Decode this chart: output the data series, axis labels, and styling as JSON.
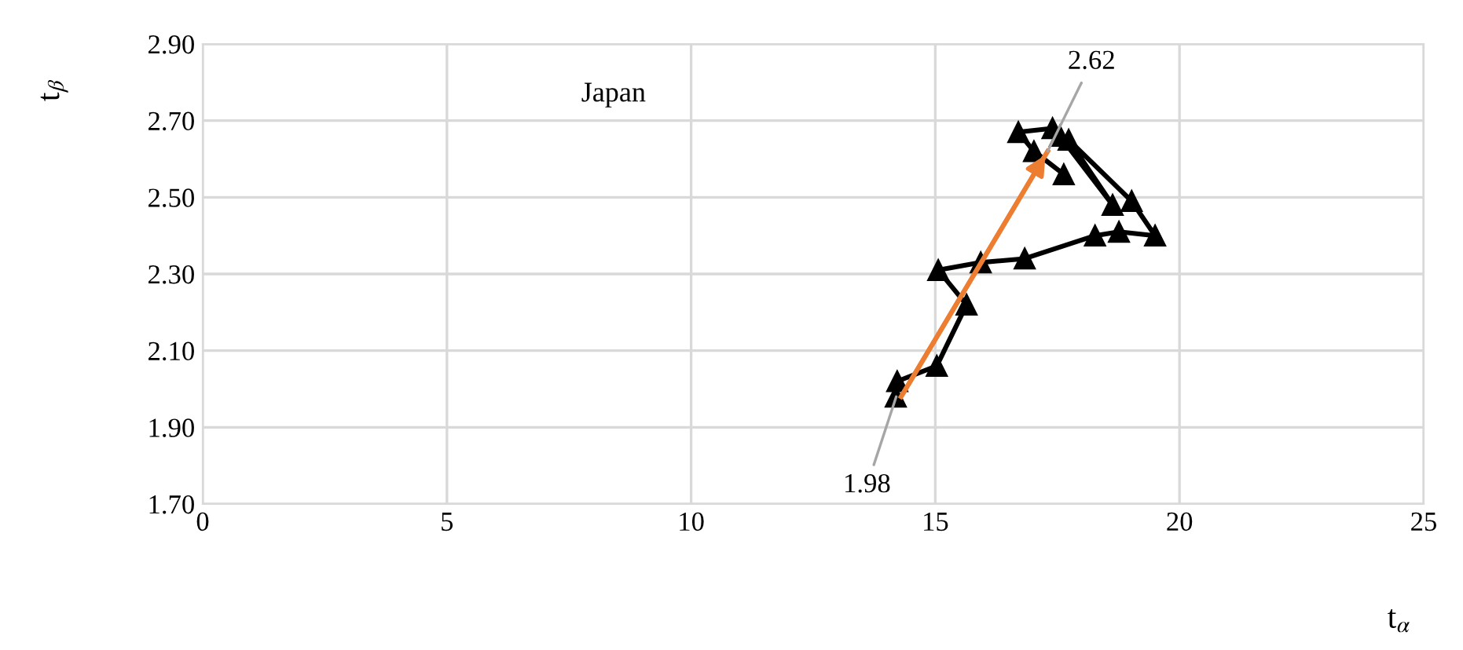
{
  "chart_data": {
    "type": "line",
    "xlabel": "t$_{α}$",
    "ylabel": "t$_{β}$",
    "annotations": [
      "Japan",
      {
        "text": "1.98",
        "x": 14.2,
        "y": 1.98
      },
      {
        "text": "2.62",
        "x": 17.3,
        "y": 2.62
      }
    ],
    "series": [
      {
        "color": "#000000",
        "marker": "triangle",
        "x": [
          14.19,
          14.22,
          15.03,
          15.64,
          15.06,
          15.93,
          16.83,
          18.27,
          18.76,
          19.5,
          19.02,
          17.73,
          18.63,
          17.55,
          17.4,
          16.7,
          17.02,
          17.63
        ],
        "values": [
          1.98,
          2.02,
          2.06,
          2.22,
          2.31,
          2.33,
          2.34,
          2.4,
          2.41,
          2.4,
          2.49,
          2.65,
          2.48,
          2.66,
          2.68,
          2.67,
          2.62,
          2.56
        ]
      },
      {
        "color": "#ed7d31",
        "marker": "none",
        "x": [
          14.3,
          17.3
        ],
        "values": [
          1.98,
          2.62
        ]
      }
    ],
    "xlim": [
      0,
      25
    ],
    "xticks": [
      0,
      5,
      10,
      15,
      20,
      25
    ],
    "ylim": [
      1.7,
      2.9
    ],
    "yticks": [
      {
        "value": 1.7,
        "label": "1.70"
      },
      {
        "value": 1.9,
        "label": "1.90"
      },
      {
        "value": 2.1,
        "label": "2.10"
      },
      {
        "value": 2.3,
        "label": "2.30"
      },
      {
        "value": 2.5,
        "label": "2.50"
      },
      {
        "value": 2.7,
        "label": "2.70"
      },
      {
        "value": 2.9,
        "label": "2.90"
      }
    ],
    "grid": true,
    "legend": false
  }
}
